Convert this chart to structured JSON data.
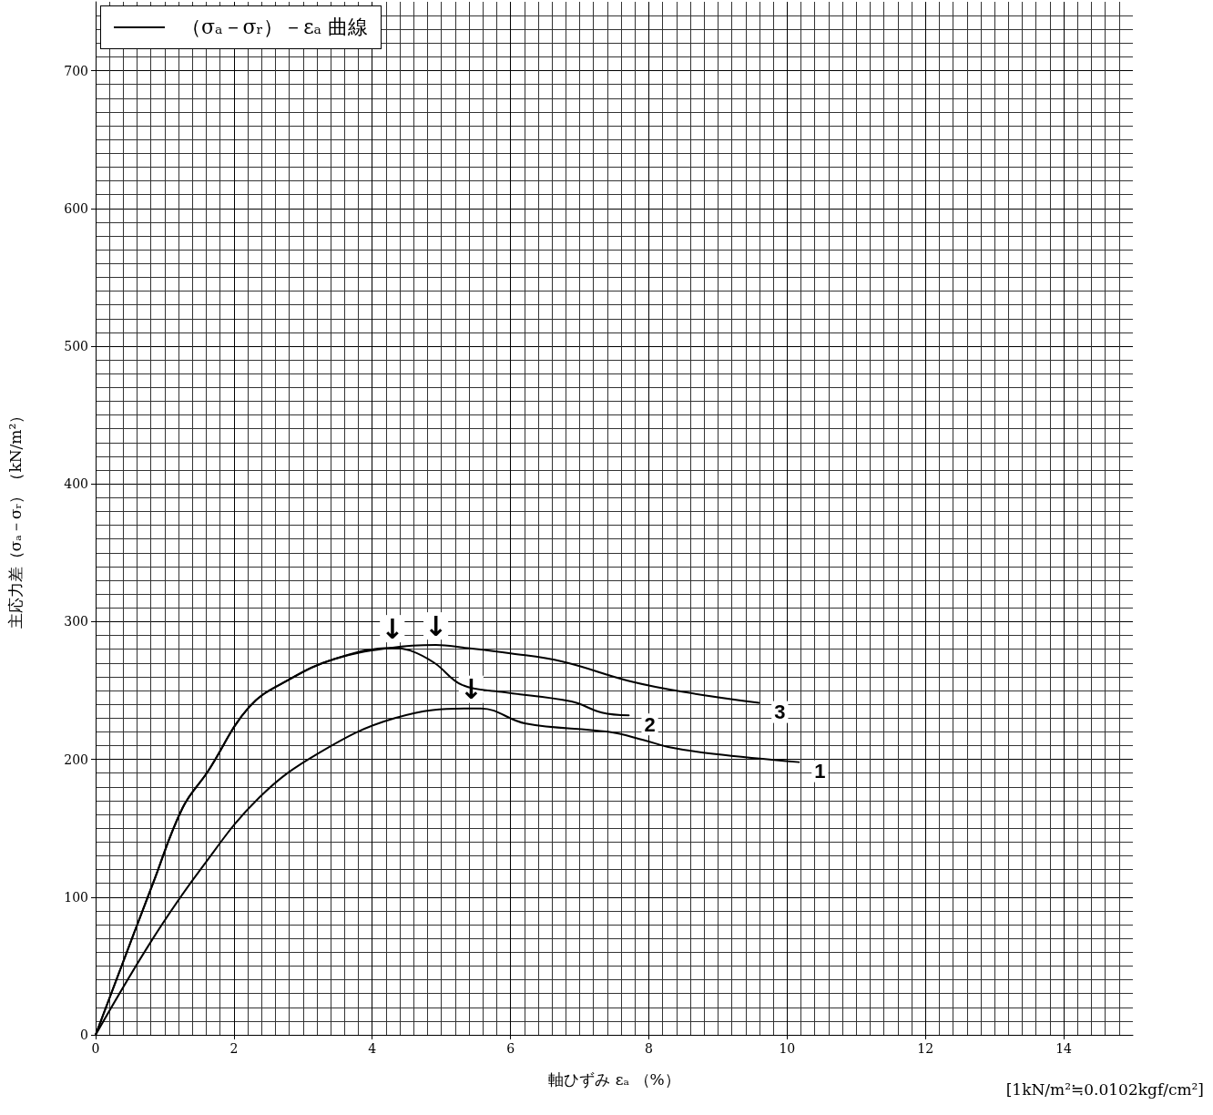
{
  "chart_data": {
    "type": "line",
    "xlabel": "軸ひずみ εₐ （%）",
    "ylabel": "主応力差（σₐ－σᵣ）（kN/m²）",
    "legend_title": "（σₐ－σᵣ）－εₐ 曲線",
    "xlim": [
      0,
      15
    ],
    "xticks": [
      0,
      2,
      4,
      6,
      8,
      10,
      12,
      14
    ],
    "ylim": [
      0,
      750
    ],
    "yticks": [
      0,
      100,
      200,
      300,
      400,
      500,
      600,
      700
    ],
    "grid": true,
    "marker": "none",
    "line_style": "solid",
    "series": [
      {
        "name": "1",
        "color": "#000000",
        "x": [
          0,
          0.83,
          1.53,
          2.36,
          3.24,
          4.33,
          5.43,
          5.57,
          6.22,
          7.41,
          7.93,
          8.28,
          8.93,
          10.17
        ],
        "values": [
          0,
          70,
          121,
          172,
          205,
          230,
          237,
          237,
          226,
          220,
          214,
          209,
          204,
          198
        ]
      },
      {
        "name": "2",
        "color": "#000000",
        "x": [
          0,
          0.83,
          1.26,
          1.62,
          2.22,
          2.8,
          3.46,
          4.29,
          4.55,
          4.9,
          5.3,
          5.87,
          6.88,
          7.32,
          7.71
        ],
        "values": [
          0,
          110,
          165,
          191,
          238,
          258,
          273,
          281,
          279,
          270,
          254,
          249,
          242,
          234,
          232
        ]
      },
      {
        "name": "3",
        "color": "#000000",
        "x": [
          0,
          0.83,
          1.26,
          1.62,
          2.22,
          2.8,
          3.46,
          4.27,
          4.92,
          5.34,
          6.0,
          6.75,
          7.71,
          8.5,
          9.59
        ],
        "values": [
          0,
          110,
          165,
          191,
          238,
          258,
          273,
          281,
          283,
          281,
          277,
          271,
          257,
          249,
          241
        ]
      }
    ],
    "annotations": [
      {
        "text": "↓",
        "x": 4.29,
        "y": 281
      },
      {
        "text": "↓",
        "x": 4.92,
        "y": 283
      },
      {
        "text": "↓",
        "x": 5.43,
        "y": 237
      },
      "[1kN/m²≒0.0102kgf/cm²]"
    ]
  }
}
